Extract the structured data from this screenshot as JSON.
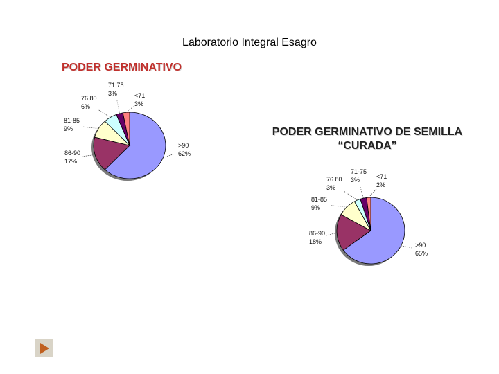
{
  "page_title": "Laboratorio Integral Esagro",
  "nav": {
    "next_icon": "play-triangle-icon"
  },
  "chart_data": [
    {
      "type": "pie",
      "title": "PODER GERMINATIVO",
      "categories": [
        ">90",
        "86-90",
        "81-85",
        "76-80",
        "71-75",
        "<71"
      ],
      "values": [
        62,
        17,
        9,
        6,
        3,
        3
      ],
      "label_names": [
        ">90",
        "86-90",
        "81-85",
        "76 80",
        "71 75",
        "<71"
      ],
      "label_values": [
        "62%",
        "17%",
        "9%",
        "6%",
        "3%",
        "3%"
      ],
      "colors": [
        "#9999ff",
        "#993366",
        "#ffffcc",
        "#ccffff",
        "#660066",
        "#ff8080"
      ]
    },
    {
      "type": "pie",
      "title": "PODER GERMINATIVO DE SEMILLA “CURADA”",
      "categories": [
        ">90",
        "86-90",
        "81-85",
        "76-80",
        "71-75",
        "<71"
      ],
      "values": [
        65,
        18,
        9,
        3,
        3,
        2
      ],
      "label_names": [
        ">90",
        "86-90",
        "81-85",
        "76 80",
        "71-75",
        "<71"
      ],
      "label_values": [
        "65%",
        "18%",
        "9%",
        "3%",
        "3%",
        "2%"
      ],
      "colors": [
        "#9999ff",
        "#993366",
        "#ffffcc",
        "#ccffff",
        "#660066",
        "#ff8080"
      ]
    }
  ]
}
